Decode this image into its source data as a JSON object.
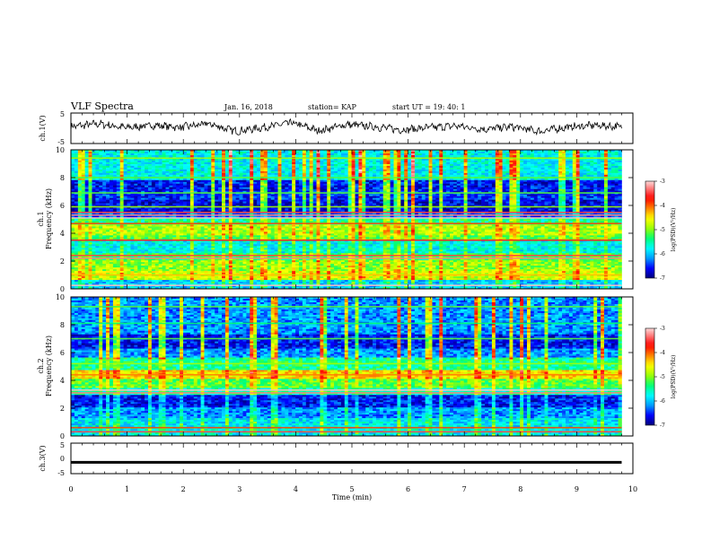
{
  "header": {
    "title": "VLF Spectra",
    "date": "Jan. 16, 2018",
    "station": "station= KAP",
    "start": "start UT =  19: 40: 1"
  },
  "colors": {
    "background": "#ffffff",
    "axis": "#000000",
    "trace": "#000000",
    "colormap": [
      "#00007a",
      "#0000ff",
      "#00a0ff",
      "#00ffff",
      "#00ff70",
      "#a0ff00",
      "#ffff00",
      "#ff8000",
      "#ff0000",
      "#ff8080",
      "#ffffff"
    ]
  },
  "chart_data": [
    {
      "type": "line",
      "panel": "ch1-waveform",
      "ylabel": "ch.1(V)",
      "ylim": [
        -5,
        5
      ],
      "xlim": [
        0,
        9.8
      ],
      "y_ticks": [
        "5",
        "-5"
      ],
      "note_values": "waveform fluctuates roughly between -2.5 and +2.5 V",
      "x": [
        0,
        0.5,
        1,
        1.5,
        2,
        2.5,
        3,
        3.5,
        4,
        4.5,
        5,
        5.5,
        6,
        6.5,
        7,
        7.5,
        8,
        8.5,
        9,
        9.5,
        9.8
      ],
      "y": [
        0.5,
        1.5,
        0.2,
        1.0,
        0.3,
        1.5,
        -1.0,
        0.3,
        1.8,
        -0.8,
        1.2,
        0.6,
        -0.5,
        0.2,
        0.8,
        -0.3,
        0.5,
        -1.0,
        0.3,
        1.0,
        0.5
      ]
    },
    {
      "type": "heatmap",
      "panel": "ch1-spectrogram",
      "ylabel": "Frequency (kHz)",
      "channel_label": "ch.1",
      "xlim": [
        0,
        9.8
      ],
      "ylim": [
        0,
        10
      ],
      "y_ticks": [
        "0",
        "2",
        "4",
        "6",
        "8",
        "10"
      ],
      "colorbar": {
        "label": "log(PSD)(V²/Hz)",
        "range": [
          -7,
          -3
        ],
        "ticks": [
          "-3",
          "-4",
          "-5",
          "-6",
          "-7"
        ]
      },
      "bands": [
        {
          "from": 0,
          "to": 0.6,
          "level": 0.25
        },
        {
          "from": 0.6,
          "to": 1.3,
          "level": 0.55
        },
        {
          "from": 1.3,
          "to": 2.0,
          "level": 0.5
        },
        {
          "from": 2.0,
          "to": 2.6,
          "level": 0.42
        },
        {
          "from": 2.6,
          "to": 3.4,
          "level": 0.3
        },
        {
          "from": 3.4,
          "to": 3.8,
          "level": 0.45
        },
        {
          "from": 3.8,
          "to": 4.6,
          "level": 0.52
        },
        {
          "from": 4.6,
          "to": 5.1,
          "level": 0.38
        },
        {
          "from": 5.1,
          "to": 5.5,
          "level": 0.15
        },
        {
          "from": 5.5,
          "to": 6.4,
          "level": 0.08
        },
        {
          "from": 6.4,
          "to": 7.0,
          "level": 0.12
        },
        {
          "from": 7.0,
          "to": 7.8,
          "level": 0.1
        },
        {
          "from": 7.8,
          "to": 10,
          "level": 0.3
        }
      ],
      "lines": [
        {
          "f": 0.25,
          "level": 0.95
        },
        {
          "f": 1.0,
          "level": 0.65
        },
        {
          "f": 2.2,
          "level": 0.9
        },
        {
          "f": 2.4,
          "level": 0.85
        },
        {
          "f": 3.5,
          "level": 0.82
        },
        {
          "f": 4.7,
          "level": 0.75
        },
        {
          "f": 5.1,
          "level": 0.95
        },
        {
          "f": 5.3,
          "level": 0.9
        },
        {
          "f": 5.5,
          "level": 0.85
        },
        {
          "f": 5.9,
          "level": 0.5
        },
        {
          "f": 6.9,
          "level": 0.45
        },
        {
          "f": 8.0,
          "level": 0.45
        },
        {
          "f": 9.4,
          "level": 0.5
        }
      ]
    },
    {
      "type": "heatmap",
      "panel": "ch2-spectrogram",
      "ylabel": "Frequency (kHz)",
      "channel_label": "ch.2",
      "xlim": [
        0,
        9.8
      ],
      "ylim": [
        0,
        10
      ],
      "y_ticks": [
        "0",
        "2",
        "4",
        "6",
        "8",
        "10"
      ],
      "colorbar": {
        "label": "log(PSD)(V²/Hz)",
        "range": [
          -7,
          -3
        ],
        "ticks": [
          "-3",
          "-4",
          "-5",
          "-6",
          "-7"
        ]
      },
      "bands": [
        {
          "from": 0,
          "to": 0.6,
          "level": 0.3
        },
        {
          "from": 0.6,
          "to": 1.3,
          "level": 0.28
        },
        {
          "from": 1.3,
          "to": 2.0,
          "level": 0.2
        },
        {
          "from": 2.0,
          "to": 2.9,
          "level": 0.1
        },
        {
          "from": 2.9,
          "to": 3.4,
          "level": 0.35
        },
        {
          "from": 3.4,
          "to": 4.1,
          "level": 0.45
        },
        {
          "from": 4.1,
          "to": 4.8,
          "level": 0.62
        },
        {
          "from": 4.8,
          "to": 5.6,
          "level": 0.38
        },
        {
          "from": 5.6,
          "to": 6.3,
          "level": 0.2
        },
        {
          "from": 6.3,
          "to": 7.3,
          "level": 0.1
        },
        {
          "from": 7.3,
          "to": 10,
          "level": 0.2
        }
      ],
      "lines": [
        {
          "f": 0.3,
          "level": 0.85
        },
        {
          "f": 0.6,
          "level": 0.75
        },
        {
          "f": 3.1,
          "level": 0.9
        },
        {
          "f": 3.3,
          "level": 0.95
        },
        {
          "f": 4.4,
          "level": 0.7
        },
        {
          "f": 5.2,
          "level": 0.5
        },
        {
          "f": 7.0,
          "level": 0.45
        },
        {
          "f": 8.1,
          "level": 0.4
        },
        {
          "f": 9.3,
          "level": 0.45
        }
      ]
    },
    {
      "type": "line",
      "panel": "ch3-waveform",
      "ylabel": "ch.3(V)",
      "xlabel": "Time (min)",
      "ylim": [
        -5,
        5
      ],
      "xlim": [
        0,
        9.8
      ],
      "y_ticks": [
        "5",
        "0",
        "-5"
      ],
      "x_ticks": [
        "0",
        "1",
        "2",
        "3",
        "4",
        "5",
        "6",
        "7",
        "8",
        "9",
        "10"
      ],
      "x": [
        0,
        9.8
      ],
      "y": [
        -1.3,
        -1.3
      ]
    }
  ]
}
